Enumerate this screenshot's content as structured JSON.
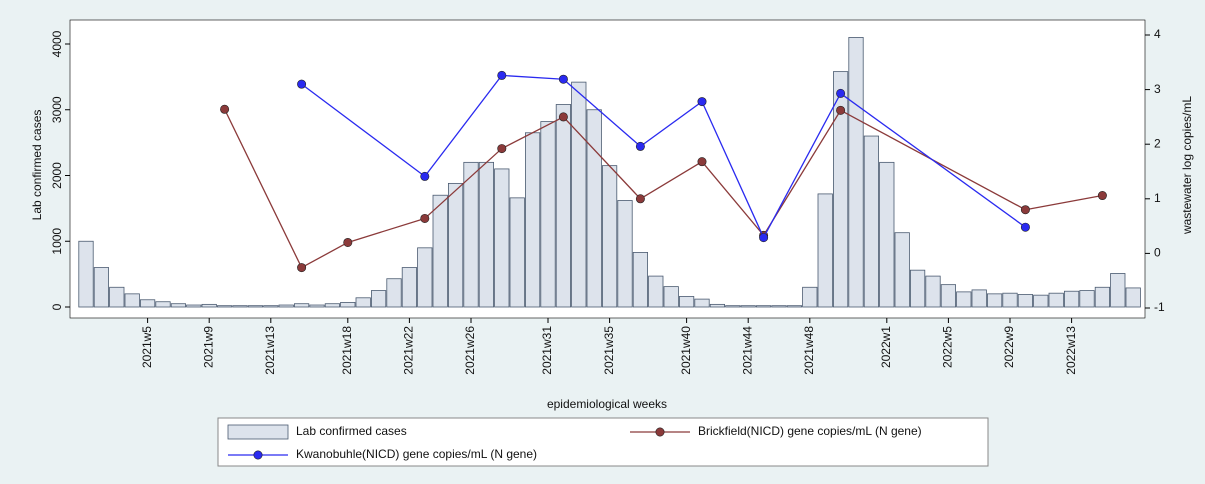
{
  "chart_data": {
    "type": "bar",
    "y_label": "Lab confirmed cases",
    "y2_label": "wastewater log copies/mL",
    "x_label": "epidemiological weeks",
    "categories": [
      null,
      null,
      null,
      null,
      "2021w5",
      null,
      null,
      null,
      "2021w9",
      null,
      null,
      null,
      "2021w13",
      null,
      null,
      null,
      null,
      "2021w18",
      null,
      null,
      null,
      "2021w22",
      null,
      null,
      null,
      "2021w26",
      null,
      null,
      null,
      null,
      "2021w31",
      null,
      null,
      null,
      "2021w35",
      null,
      null,
      null,
      null,
      "2021w40",
      null,
      null,
      null,
      "2021w44",
      null,
      null,
      null,
      "2021w48",
      null,
      null,
      null,
      null,
      "2022w1",
      null,
      null,
      null,
      "2022w5",
      null,
      null,
      null,
      "2022w9",
      null,
      null,
      null,
      "2022w13",
      null,
      null,
      null,
      null
    ],
    "series": [
      {
        "name": "Lab confirmed cases",
        "type": "bar",
        "color": "#dde3ec",
        "values": [
          1000,
          600,
          300,
          200,
          110,
          80,
          50,
          30,
          40,
          20,
          20,
          20,
          20,
          30,
          50,
          30,
          50,
          70,
          140,
          250,
          430,
          600,
          900,
          1700,
          1880,
          2200,
          2200,
          2100,
          1660,
          2650,
          2820,
          3080,
          3420,
          3000,
          2150,
          1620,
          830,
          470,
          310,
          160,
          120,
          40,
          20,
          20,
          20,
          20,
          20,
          300,
          1720,
          3580,
          4100,
          2600,
          2200,
          1130,
          560,
          470,
          340,
          230,
          260,
          200,
          210,
          190,
          180,
          210,
          240,
          250,
          300,
          510,
          290
        ]
      },
      {
        "name": "Brickfield(NICD) gene copies/mL (N gene)",
        "type": "line",
        "axis": "y2",
        "color": "#8b3a3a",
        "values": [
          null,
          null,
          null,
          null,
          null,
          null,
          null,
          null,
          null,
          2.64,
          null,
          null,
          null,
          null,
          -0.26,
          null,
          null,
          0.2,
          null,
          null,
          null,
          null,
          0.64,
          null,
          null,
          null,
          null,
          1.92,
          null,
          null,
          null,
          2.5,
          null,
          null,
          null,
          null,
          1,
          null,
          null,
          null,
          1.68,
          null,
          null,
          null,
          0.33,
          null,
          null,
          null,
          null,
          2.62,
          null,
          null,
          null,
          null,
          null,
          null,
          null,
          null,
          null,
          null,
          null,
          0.8,
          null,
          null,
          null,
          null,
          1.06,
          null,
          null
        ]
      },
      {
        "name": "Kwanobuhle(NICD) gene copies/mL (N gene)",
        "type": "line",
        "axis": "y2",
        "color": "#2a2af0",
        "values": [
          null,
          null,
          null,
          null,
          null,
          null,
          null,
          null,
          null,
          null,
          null,
          null,
          null,
          null,
          3.1,
          null,
          null,
          null,
          null,
          null,
          null,
          null,
          1.41,
          null,
          null,
          null,
          null,
          3.26,
          null,
          null,
          null,
          3.19,
          null,
          null,
          null,
          null,
          1.96,
          null,
          null,
          null,
          2.78,
          null,
          null,
          null,
          0.29,
          null,
          null,
          null,
          null,
          2.93,
          null,
          null,
          null,
          null,
          null,
          null,
          null,
          null,
          null,
          null,
          null,
          0.48,
          null,
          null,
          null,
          null,
          null,
          null,
          null
        ]
      }
    ],
    "ylim": [
      0,
      4000
    ],
    "yticks": [
      0,
      1000,
      2000,
      3000,
      4000
    ],
    "y2lim": [
      -1,
      4
    ],
    "y2ticks": [
      -1,
      0,
      1,
      2,
      3,
      4
    ],
    "grid": false,
    "legend": "bottom"
  }
}
